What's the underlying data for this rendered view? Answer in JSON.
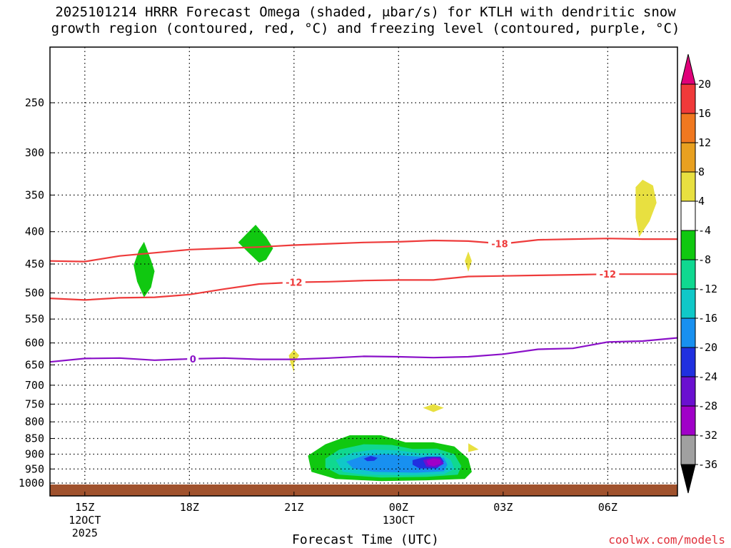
{
  "chart_data": {
    "type": "time-height cross-section",
    "title_line1": "2025101214 HRRR Forecast Omega (shaded, μbar/s) for KTLH with dendritic snow",
    "title_line2": "growth region (contoured, red, °C) and freezing level (contoured, purple, °C)",
    "xlabel": "Forecast Time (UTC)",
    "credit": "coolwx.com/models",
    "y_axis": {
      "scale": "log-pressure",
      "range_hpa": [
        200,
        1050
      ],
      "ticks": [
        250,
        300,
        350,
        400,
        450,
        500,
        550,
        600,
        650,
        700,
        750,
        800,
        850,
        900,
        950,
        1000
      ]
    },
    "x_axis": {
      "range_hours": [
        14,
        32
      ],
      "ticks": [
        {
          "hour": 15,
          "label": "15Z",
          "sub1": "12OCT",
          "sub2": "2025"
        },
        {
          "hour": 18,
          "label": "18Z",
          "sub1": "",
          "sub2": ""
        },
        {
          "hour": 21,
          "label": "21Z",
          "sub1": "",
          "sub2": ""
        },
        {
          "hour": 24,
          "label": "00Z",
          "sub1": "13OCT",
          "sub2": ""
        },
        {
          "hour": 27,
          "label": "03Z",
          "sub1": "",
          "sub2": ""
        },
        {
          "hour": 30,
          "label": "06Z",
          "sub1": "",
          "sub2": ""
        }
      ]
    },
    "colorbar": {
      "colors": [
        "#e0007a",
        "#f03a3a",
        "#f07820",
        "#e8a020",
        "#e8e040",
        "#ffffff",
        "#10c810",
        "#10d890",
        "#10c8c8",
        "#1890f0",
        "#2030e0",
        "#6a10d0",
        "#a000c8",
        "#a0a0a0",
        "#000000"
      ],
      "labels": [
        "20",
        "16",
        "12",
        "8",
        "4",
        "-4",
        "-8",
        "-12",
        "-16",
        "-20",
        "-24",
        "-28",
        "-32",
        "-36"
      ]
    },
    "contours": [
      {
        "name": "minus-18-isotherm",
        "value": "-18",
        "color": "#ee3b3b",
        "points": [
          [
            14,
            445
          ],
          [
            15,
            446
          ],
          [
            16,
            437
          ],
          [
            17,
            432
          ],
          [
            18,
            427
          ],
          [
            19,
            425
          ],
          [
            20,
            423
          ],
          [
            21,
            420
          ],
          [
            22,
            418
          ],
          [
            23,
            416
          ],
          [
            24,
            415
          ],
          [
            25,
            413
          ],
          [
            26,
            414
          ],
          [
            27,
            418
          ],
          [
            28,
            412
          ],
          [
            29,
            411
          ],
          [
            30,
            410
          ],
          [
            31,
            411
          ],
          [
            32,
            411
          ]
        ],
        "labels_at_hour": [
          26.9
        ]
      },
      {
        "name": "minus-12-isotherm",
        "value": "-12",
        "color": "#ee3b3b",
        "points": [
          [
            14,
            510
          ],
          [
            15,
            513
          ],
          [
            16,
            509
          ],
          [
            17,
            508
          ],
          [
            18,
            503
          ],
          [
            19,
            493
          ],
          [
            20,
            484
          ],
          [
            21,
            481
          ],
          [
            22,
            480
          ],
          [
            23,
            478
          ],
          [
            24,
            477
          ],
          [
            25,
            477
          ],
          [
            26,
            471
          ],
          [
            27,
            470
          ],
          [
            28,
            469
          ],
          [
            29,
            468
          ],
          [
            30,
            467
          ],
          [
            31,
            467
          ],
          [
            32,
            467
          ]
        ],
        "labels_at_hour": [
          21.0,
          30.0
        ]
      },
      {
        "name": "freezing-level",
        "value": "0",
        "color": "#8a10c8",
        "points": [
          [
            14,
            643
          ],
          [
            15,
            635
          ],
          [
            16,
            634
          ],
          [
            17,
            639
          ],
          [
            18,
            636
          ],
          [
            19,
            634
          ],
          [
            20,
            637
          ],
          [
            21,
            637
          ],
          [
            22,
            634
          ],
          [
            23,
            630
          ],
          [
            24,
            631
          ],
          [
            25,
            633
          ],
          [
            26,
            631
          ],
          [
            27,
            625
          ],
          [
            28,
            614
          ],
          [
            29,
            612
          ],
          [
            30,
            598
          ],
          [
            31,
            596
          ],
          [
            32,
            589
          ]
        ],
        "labels_at_hour": [
          18.1
        ]
      }
    ],
    "omega_shading": [
      {
        "category": "-4",
        "color": "#10c810",
        "polys": [
          [
            [
              16.7,
              415
            ],
            [
              16.9,
              444
            ],
            [
              17.0,
              462
            ],
            [
              16.9,
              490
            ],
            [
              16.7,
              508
            ],
            [
              16.5,
              480
            ],
            [
              16.4,
              452
            ],
            [
              16.55,
              428
            ]
          ],
          [
            [
              19.9,
              390
            ],
            [
              20.2,
              408
            ],
            [
              20.4,
              425
            ],
            [
              20.2,
              443
            ],
            [
              20.0,
              448
            ],
            [
              19.7,
              432
            ],
            [
              19.4,
              416
            ],
            [
              19.7,
              400
            ]
          ],
          [
            [
              21.4,
              905
            ],
            [
              21.9,
              868
            ],
            [
              22.6,
              840
            ],
            [
              23.5,
              840
            ],
            [
              24.2,
              862
            ],
            [
              25.0,
              862
            ],
            [
              25.6,
              875
            ],
            [
              26.0,
              915
            ],
            [
              26.1,
              960
            ],
            [
              25.9,
              985
            ],
            [
              24.8,
              990
            ],
            [
              23.5,
              993
            ],
            [
              22.2,
              985
            ],
            [
              21.5,
              960
            ]
          ]
        ]
      },
      {
        "category": "-8",
        "color": "#10d890",
        "polys": [
          [
            [
              21.9,
              915
            ],
            [
              22.3,
              885
            ],
            [
              23.0,
              868
            ],
            [
              23.8,
              870
            ],
            [
              24.4,
              883
            ],
            [
              25.1,
              882
            ],
            [
              25.6,
              900
            ],
            [
              25.8,
              940
            ],
            [
              25.7,
              970
            ],
            [
              24.8,
              978
            ],
            [
              23.5,
              980
            ],
            [
              22.3,
              970
            ],
            [
              21.9,
              945
            ]
          ]
        ]
      },
      {
        "category": "-12",
        "color": "#10c8c8",
        "polys": [
          [
            [
              22.2,
              920
            ],
            [
              22.7,
              895
            ],
            [
              23.3,
              885
            ],
            [
              24.0,
              888
            ],
            [
              24.6,
              897
            ],
            [
              25.2,
              897
            ],
            [
              25.5,
              920
            ],
            [
              25.6,
              950
            ],
            [
              25.3,
              968
            ],
            [
              24.2,
              972
            ],
            [
              23.0,
              970
            ],
            [
              22.4,
              960
            ]
          ]
        ]
      },
      {
        "category": "-16",
        "color": "#1890f0",
        "polys": [
          [
            [
              22.5,
              925
            ],
            [
              23.0,
              905
            ],
            [
              23.6,
              900
            ],
            [
              24.2,
              905
            ],
            [
              24.8,
              910
            ],
            [
              25.3,
              912
            ],
            [
              25.4,
              935
            ],
            [
              25.3,
              958
            ],
            [
              24.5,
              963
            ],
            [
              23.3,
              960
            ],
            [
              22.7,
              948
            ]
          ]
        ]
      },
      {
        "category": "-20",
        "color": "#2030e0",
        "polys": [
          [
            [
              23.0,
              915
            ],
            [
              23.2,
              906
            ],
            [
              23.4,
              912
            ],
            [
              23.3,
              922
            ],
            [
              23.1,
              923
            ]
          ],
          [
            [
              24.4,
              920
            ],
            [
              24.8,
              908
            ],
            [
              25.2,
              908
            ],
            [
              25.3,
              925
            ],
            [
              25.1,
              948
            ],
            [
              24.6,
              948
            ],
            [
              24.4,
              935
            ]
          ]
        ]
      },
      {
        "category": "-24",
        "color": "#6a10d0",
        "polys": [
          [
            [
              24.7,
              920
            ],
            [
              25.0,
              910
            ],
            [
              25.2,
              912
            ],
            [
              25.3,
              932
            ],
            [
              25.1,
              945
            ],
            [
              24.8,
              942
            ]
          ]
        ]
      },
      {
        "category": "-28",
        "color": "#a000c8",
        "polys": [
          [
            [
              24.8,
              922
            ],
            [
              25.0,
              915
            ],
            [
              25.2,
              918
            ],
            [
              25.2,
              932
            ],
            [
              25.0,
              940
            ],
            [
              24.85,
              935
            ]
          ]
        ]
      },
      {
        "category": "4",
        "color": "#e8e040",
        "polys": [
          [
            [
              30.8,
              340
            ],
            [
              31.0,
              331
            ],
            [
              31.3,
              338
            ],
            [
              31.4,
              360
            ],
            [
              31.2,
              385
            ],
            [
              31.0,
              400
            ],
            [
              30.9,
              408
            ],
            [
              30.8,
              380
            ]
          ],
          [
            [
              21.0,
              615
            ],
            [
              21.15,
              628
            ],
            [
              21.0,
              645
            ],
            [
              21.0,
              668
            ],
            [
              20.9,
              645
            ],
            [
              20.85,
              628
            ]
          ],
          [
            [
              25.0,
              750
            ],
            [
              25.3,
              760
            ],
            [
              25.0,
              772
            ],
            [
              24.7,
              760
            ]
          ],
          [
            [
              26.0,
              430
            ],
            [
              26.1,
              445
            ],
            [
              26.0,
              463
            ],
            [
              25.9,
              445
            ]
          ],
          [
            [
              26.0,
              865
            ],
            [
              26.3,
              885
            ],
            [
              26.0,
              893
            ]
          ]
        ]
      }
    ]
  }
}
